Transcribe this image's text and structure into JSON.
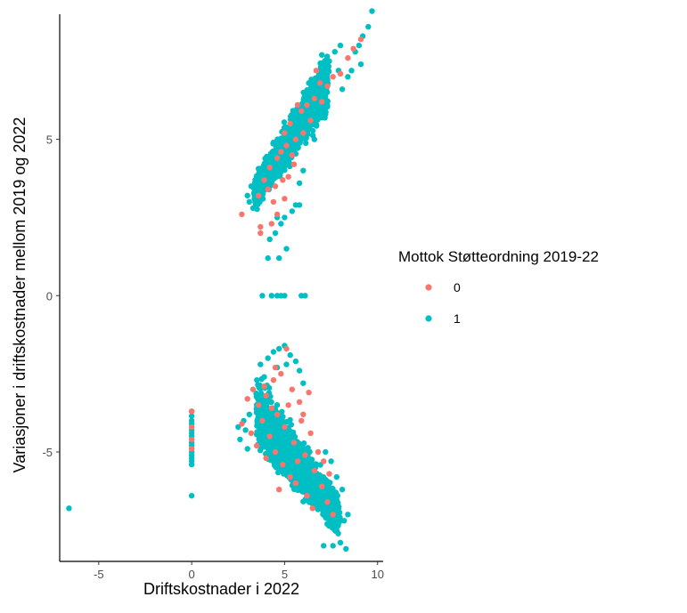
{
  "chart_data": {
    "type": "scatter",
    "title": "",
    "xlabel": "Driftskostnader i 2022",
    "ylabel": "Variasjoner i driftskostnader mellom 2019 og 2022",
    "xlim": [
      -7.1,
      10.3
    ],
    "ylim": [
      -8.5,
      9.0
    ],
    "x_ticks": [
      -5,
      0,
      5,
      10
    ],
    "y_ticks": [
      -5,
      0,
      5
    ],
    "grid": false,
    "legend": {
      "title": "Mottok Støtteordning 2019-22",
      "placement": "right",
      "entries": [
        {
          "label": "0",
          "color": "#F8766D"
        },
        {
          "label": "1",
          "color": "#00BFC4"
        }
      ]
    },
    "series": [
      {
        "name": "1",
        "color": "#00BFC4",
        "points": [
          [
            -6.6,
            -6.8
          ],
          [
            0,
            -3.7
          ],
          [
            0,
            -3.85
          ],
          [
            0,
            -4.0
          ],
          [
            0,
            -4.2
          ],
          [
            0,
            -4.4
          ],
          [
            0,
            -4.6
          ],
          [
            0,
            -4.8
          ],
          [
            0,
            -5.0
          ],
          [
            0,
            -5.2
          ],
          [
            0,
            -5.4
          ],
          [
            0,
            -6.4
          ],
          [
            0,
            -4.1
          ],
          [
            0,
            -4.3
          ],
          [
            0,
            -4.5
          ],
          [
            0,
            -4.7
          ],
          [
            0,
            -4.9
          ],
          [
            0,
            -5.1
          ],
          [
            0,
            -5.3
          ],
          [
            3.8,
            0
          ],
          [
            4.3,
            0
          ],
          [
            4.6,
            0
          ],
          [
            4.8,
            0
          ],
          [
            5.0,
            0
          ],
          [
            5.9,
            0
          ],
          [
            6.1,
            0
          ],
          [
            4.1,
            1.2
          ],
          [
            4.7,
            1.2
          ],
          [
            5.1,
            1.5
          ],
          [
            4.5,
            2.0
          ],
          [
            4.2,
            1.8
          ],
          [
            4.6,
            2.5
          ],
          [
            9.7,
            9.1
          ],
          [
            9.5,
            8.6
          ],
          [
            9.2,
            8.3
          ],
          [
            9.0,
            8.0
          ],
          [
            8.8,
            7.8
          ],
          [
            9.1,
            7.4
          ],
          [
            8.6,
            7.2
          ],
          [
            8.4,
            7.0
          ],
          [
            8.1,
            6.6
          ],
          [
            7.7,
            7.8
          ],
          [
            7.4,
            7.5
          ],
          [
            7.9,
            7.2
          ],
          [
            8.0,
            8.0
          ],
          [
            2.9,
            -4.3
          ],
          [
            2.6,
            -4.6
          ],
          [
            2.8,
            -4.0
          ],
          [
            3.0,
            -4.9
          ],
          [
            3.1,
            -3.8
          ],
          [
            2.5,
            -4.2
          ],
          [
            8.3,
            -8.1
          ],
          [
            8.0,
            -7.9
          ],
          [
            7.6,
            -8.0
          ],
          [
            7.1,
            -8.0
          ],
          [
            7.8,
            -7.5
          ],
          [
            8.2,
            -7.2
          ],
          [
            7.9,
            -6.8
          ],
          [
            8.4,
            -7.0
          ],
          [
            7.5,
            -5.3
          ],
          [
            7.8,
            -5.8
          ],
          [
            8.1,
            -6.2
          ],
          [
            7.2,
            -5.0
          ],
          [
            4.7,
            -1.7
          ],
          [
            5.0,
            -1.6
          ],
          [
            5.3,
            -1.9
          ],
          [
            4.4,
            -1.8
          ],
          [
            5.6,
            -2.1
          ],
          [
            4.1,
            -2.0
          ],
          [
            5.8,
            -2.4
          ],
          [
            5.1,
            -2.2
          ],
          [
            4.6,
            -2.3
          ],
          [
            3.7,
            -2.2
          ],
          [
            3.9,
            -2.6
          ],
          [
            6.0,
            -2.8
          ],
          [
            3.1,
            3.0
          ],
          [
            3.2,
            3.5
          ],
          [
            3.3,
            2.8
          ],
          [
            5.8,
            2.9
          ],
          [
            5.4,
            2.7
          ],
          [
            5.0,
            2.5
          ],
          [
            4.8,
            2.3
          ],
          [
            5.6,
            2.9
          ],
          [
            3.4,
            3.2
          ],
          [
            3.0,
            3.2
          ],
          [
            3.6,
            3.8
          ],
          [
            4.1,
            4.2
          ],
          [
            4.4,
            4.9
          ],
          [
            6.3,
            6.8
          ],
          [
            7.0,
            7.7
          ],
          [
            6.8,
            6.0
          ],
          [
            7.2,
            5.8
          ],
          [
            6.6,
            5.0
          ],
          [
            6.0,
            4.0
          ],
          [
            5.8,
            3.6
          ]
        ],
        "clusters": [
          {
            "x": [
              3.4,
              7.3
            ],
            "y_at_x_min": [
              2.6,
              4.0
            ],
            "y_at_x_max": [
              5.6,
              8.0
            ],
            "shape": "rising band",
            "n": 1600
          },
          {
            "x": [
              3.5,
              7.9
            ],
            "y_at_x_min": [
              -5.3,
              -2.1
            ],
            "y_at_x_max": [
              -7.9,
              -6.2
            ],
            "shape": "falling band",
            "n": 1900
          }
        ]
      },
      {
        "name": "0",
        "color": "#F8766D",
        "points": [
          [
            0,
            -3.7
          ],
          [
            0,
            -4.2
          ],
          [
            0,
            -4.6
          ],
          [
            0,
            -4.9
          ],
          [
            2.7,
            2.6
          ],
          [
            3.7,
            2.0
          ],
          [
            3.7,
            2.2
          ],
          [
            4.3,
            2.3
          ],
          [
            4.6,
            2.6
          ],
          [
            3.6,
            3.2
          ],
          [
            5.0,
            3.1
          ],
          [
            9.1,
            8.2
          ],
          [
            8.7,
            7.9
          ],
          [
            8.4,
            7.6
          ],
          [
            8.0,
            7.1
          ],
          [
            7.6,
            7.0
          ],
          [
            7.3,
            6.7
          ],
          [
            3.9,
            3.7
          ],
          [
            4.2,
            4.1
          ],
          [
            4.5,
            3.5
          ],
          [
            4.8,
            4.6
          ],
          [
            5.1,
            4.8
          ],
          [
            5.3,
            5.5
          ],
          [
            5.6,
            5.0
          ],
          [
            5.9,
            5.9
          ],
          [
            6.2,
            6.1
          ],
          [
            6.6,
            6.3
          ],
          [
            6.9,
            6.8
          ],
          [
            5.0,
            5.2
          ],
          [
            4.6,
            4.4
          ],
          [
            5.5,
            4.2
          ],
          [
            6.0,
            5.2
          ],
          [
            4.4,
            3.0
          ],
          [
            5.7,
            6.1
          ],
          [
            6.4,
            5.6
          ],
          [
            4.1,
            3.4
          ],
          [
            5.2,
            3.8
          ],
          [
            6.7,
            7.2
          ],
          [
            7.0,
            6.2
          ],
          [
            5.4,
            4.5
          ],
          [
            4.9,
            3.7
          ],
          [
            3.0,
            -3.3
          ],
          [
            3.3,
            -3.0
          ],
          [
            3.6,
            -3.5
          ],
          [
            4.0,
            -3.2
          ],
          [
            4.4,
            -2.7
          ],
          [
            4.8,
            -2.5
          ],
          [
            5.1,
            -1.7
          ],
          [
            5.4,
            -3.0
          ],
          [
            5.8,
            -3.4
          ],
          [
            6.0,
            -3.8
          ],
          [
            6.4,
            -4.4
          ],
          [
            6.8,
            -5.0
          ],
          [
            7.1,
            -5.3
          ],
          [
            7.4,
            -5.7
          ],
          [
            3.8,
            -4.0
          ],
          [
            4.2,
            -4.5
          ],
          [
            4.5,
            -5.0
          ],
          [
            4.9,
            -5.4
          ],
          [
            5.3,
            -5.8
          ],
          [
            5.6,
            -6.0
          ],
          [
            6.2,
            -6.4
          ],
          [
            4.6,
            -3.8
          ],
          [
            5.0,
            -4.2
          ],
          [
            5.5,
            -4.7
          ],
          [
            6.1,
            -5.1
          ],
          [
            6.6,
            -5.6
          ],
          [
            7.0,
            -6.1
          ],
          [
            7.3,
            -6.6
          ],
          [
            3.5,
            -4.8
          ],
          [
            4.0,
            -5.2
          ],
          [
            4.3,
            -3.6
          ],
          [
            5.2,
            -3.5
          ],
          [
            5.7,
            -5.3
          ],
          [
            6.5,
            -6.8
          ],
          [
            7.6,
            -7.0
          ],
          [
            2.7,
            -4.1
          ],
          [
            3.2,
            -4.4
          ],
          [
            4.7,
            -6.2
          ],
          [
            5.9,
            -4.0
          ],
          [
            6.3,
            -3.1
          ],
          [
            3.9,
            -2.9
          ],
          [
            4.5,
            -2.3
          ]
        ]
      }
    ]
  }
}
